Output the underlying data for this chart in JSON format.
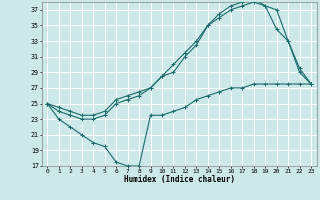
{
  "title": "",
  "xlabel": "Humidex (Indice chaleur)",
  "bg_color": "#cce8e8",
  "grid_color": "#ffffff",
  "line_color": "#1a6b6b",
  "xlim": [
    -0.5,
    23.5
  ],
  "ylim": [
    17,
    38
  ],
  "yticks": [
    17,
    19,
    21,
    23,
    25,
    27,
    29,
    31,
    33,
    35,
    37
  ],
  "xticks": [
    0,
    1,
    2,
    3,
    4,
    5,
    6,
    7,
    8,
    9,
    10,
    11,
    12,
    13,
    14,
    15,
    16,
    17,
    18,
    19,
    20,
    21,
    22,
    23
  ],
  "line1_x": [
    0,
    1,
    2,
    3,
    4,
    5,
    6,
    7,
    8,
    9,
    10,
    11,
    12,
    13,
    14,
    15,
    16,
    17,
    18,
    19,
    20,
    21,
    22,
    23
  ],
  "line1_y": [
    25,
    23,
    22,
    21,
    20,
    19.5,
    17.5,
    17,
    17,
    23.5,
    23.5,
    24,
    24.5,
    25.5,
    26,
    26.5,
    27,
    27,
    27.5,
    27.5,
    27.5,
    27.5,
    27.5,
    27.5
  ],
  "line2_x": [
    0,
    1,
    2,
    3,
    4,
    5,
    6,
    7,
    8,
    9,
    10,
    11,
    12,
    13,
    14,
    15,
    16,
    17,
    18,
    19,
    20,
    21,
    22,
    23
  ],
  "line2_y": [
    25,
    24,
    23.5,
    23,
    23,
    23.5,
    25,
    25.5,
    26,
    27,
    28.5,
    29,
    31,
    32.5,
    35,
    36,
    37,
    37.5,
    38,
    37.5,
    37,
    33,
    29,
    27.5
  ],
  "line3_x": [
    0,
    1,
    2,
    3,
    4,
    5,
    6,
    7,
    8,
    9,
    10,
    11,
    12,
    13,
    14,
    15,
    16,
    17,
    18,
    19,
    20,
    21,
    22,
    23
  ],
  "line3_y": [
    25,
    24.5,
    24,
    23.5,
    23.5,
    24,
    25.5,
    26,
    26.5,
    27,
    28.5,
    30,
    31.5,
    33,
    35,
    36.5,
    37.5,
    38,
    38.5,
    37.5,
    34.5,
    33,
    29.5,
    27.5
  ]
}
